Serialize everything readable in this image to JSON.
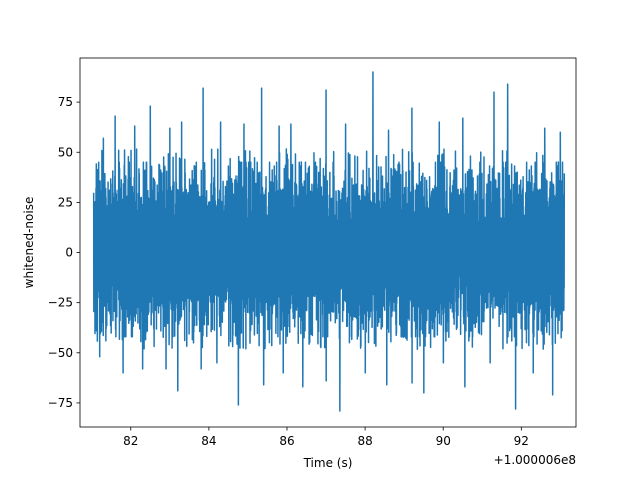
{
  "chart_data": {
    "type": "line",
    "title": "",
    "xlabel": "Time (s)",
    "ylabel": "whitened-noise",
    "x_offset_label": "+1.000006e8",
    "xlim": [
      80.7,
      93.4
    ],
    "ylim": [
      -87,
      97
    ],
    "x_ticks": [
      82,
      84,
      86,
      88,
      90,
      92
    ],
    "x_tick_labels": [
      "82",
      "84",
      "86",
      "88",
      "90",
      "92"
    ],
    "y_ticks": [
      -75,
      -50,
      -25,
      0,
      25,
      50,
      75
    ],
    "y_tick_labels": [
      "−75",
      "−50",
      "−25",
      "0",
      "25",
      "50",
      "75"
    ],
    "grid": false,
    "legend": "none",
    "series": [
      {
        "color": "#1f77b4",
        "x_range": [
          81.05,
          93.1
        ],
        "typical_range": [
          -42,
          45
        ],
        "peaks_high": [
          {
            "x": 81.3,
            "y": 57
          },
          {
            "x": 81.6,
            "y": 68
          },
          {
            "x": 82.1,
            "y": 63
          },
          {
            "x": 82.5,
            "y": 73
          },
          {
            "x": 83.0,
            "y": 62
          },
          {
            "x": 83.3,
            "y": 65
          },
          {
            "x": 83.85,
            "y": 82
          },
          {
            "x": 84.3,
            "y": 65
          },
          {
            "x": 84.9,
            "y": 64
          },
          {
            "x": 85.35,
            "y": 82
          },
          {
            "x": 85.8,
            "y": 63
          },
          {
            "x": 86.1,
            "y": 64
          },
          {
            "x": 87.0,
            "y": 81
          },
          {
            "x": 87.5,
            "y": 64
          },
          {
            "x": 88.2,
            "y": 90
          },
          {
            "x": 88.6,
            "y": 61
          },
          {
            "x": 89.2,
            "y": 72
          },
          {
            "x": 89.9,
            "y": 65
          },
          {
            "x": 90.5,
            "y": 67
          },
          {
            "x": 91.3,
            "y": 80
          },
          {
            "x": 91.65,
            "y": 84
          },
          {
            "x": 92.6,
            "y": 62
          },
          {
            "x": 93.0,
            "y": 60
          }
        ],
        "peaks_low": [
          {
            "x": 81.2,
            "y": -52
          },
          {
            "x": 81.8,
            "y": -60
          },
          {
            "x": 82.3,
            "y": -58
          },
          {
            "x": 82.9,
            "y": -58
          },
          {
            "x": 83.2,
            "y": -69
          },
          {
            "x": 83.8,
            "y": -58
          },
          {
            "x": 84.2,
            "y": -55
          },
          {
            "x": 84.75,
            "y": -76
          },
          {
            "x": 85.4,
            "y": -66
          },
          {
            "x": 85.9,
            "y": -60
          },
          {
            "x": 86.4,
            "y": -67
          },
          {
            "x": 87.0,
            "y": -64
          },
          {
            "x": 87.35,
            "y": -79
          },
          {
            "x": 88.0,
            "y": -60
          },
          {
            "x": 88.55,
            "y": -66
          },
          {
            "x": 89.2,
            "y": -65
          },
          {
            "x": 89.5,
            "y": -70
          },
          {
            "x": 90.0,
            "y": -55
          },
          {
            "x": 90.55,
            "y": -67
          },
          {
            "x": 91.2,
            "y": -55
          },
          {
            "x": 91.85,
            "y": -78
          },
          {
            "x": 92.3,
            "y": -60
          },
          {
            "x": 92.8,
            "y": -71
          }
        ]
      }
    ]
  }
}
